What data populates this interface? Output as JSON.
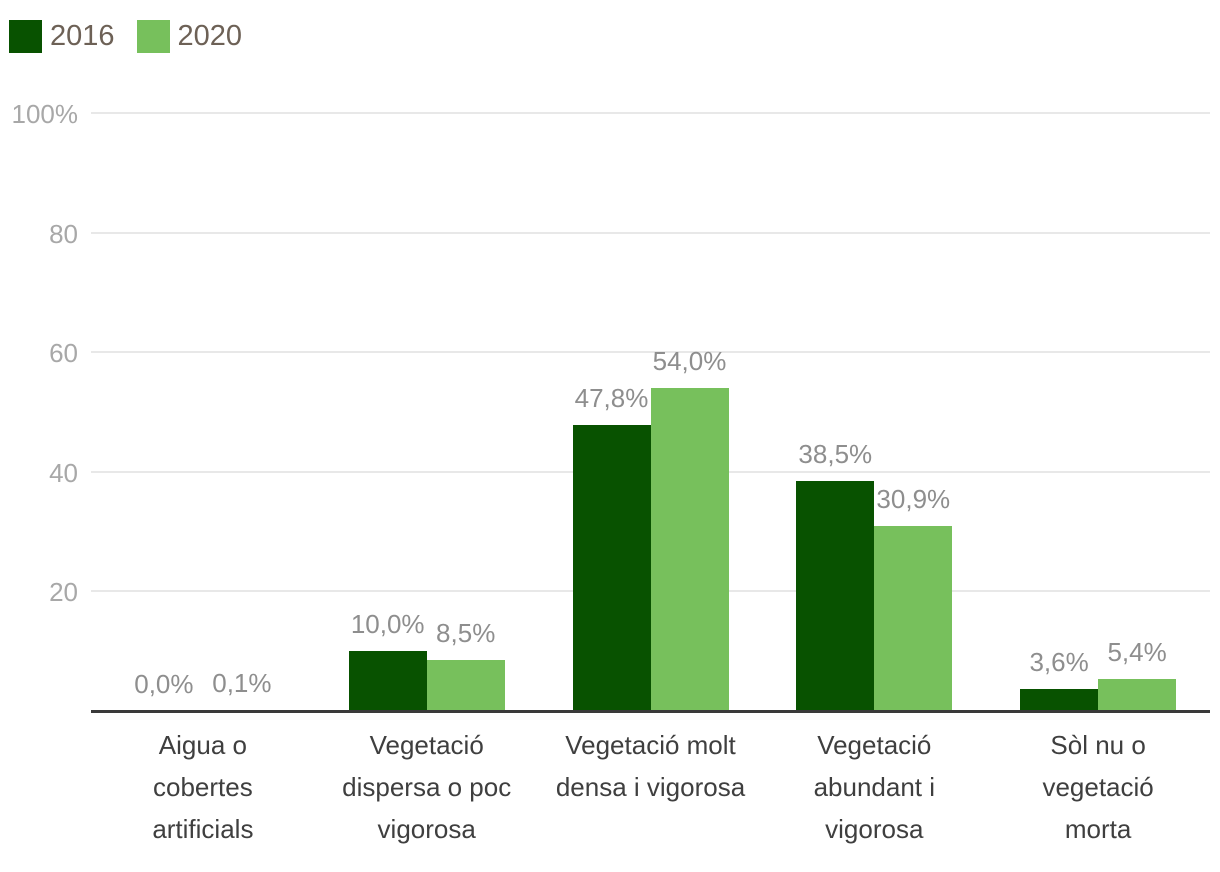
{
  "legend": {
    "series": [
      {
        "label": "2016",
        "color": "#085200"
      },
      {
        "label": "2020",
        "color": "#77c05c"
      }
    ]
  },
  "chart_data": {
    "type": "bar",
    "title": "",
    "xlabel": "",
    "ylabel": "",
    "ylim": [
      0,
      100
    ],
    "grid": true,
    "legend_position": "top-left",
    "y_ticks": [
      "100%",
      "80",
      "60",
      "40",
      "20"
    ],
    "y_tick_values": [
      100,
      80,
      60,
      40,
      20
    ],
    "categories": [
      "Aigua o cobertes artificials",
      "Vegetació dispersa o poc vigorosa",
      "Vegetació molt densa i vigorosa",
      "Vegetació abundant i vigorosa",
      "Sòl nu o vegetació morta"
    ],
    "categories_wrapped": [
      [
        "Aigua o",
        "cobertes",
        "artificials"
      ],
      [
        "Vegetació",
        "dispersa o poc",
        "vigorosa"
      ],
      [
        "Vegetació molt",
        "densa i vigorosa"
      ],
      [
        "Vegetació",
        "abundant i",
        "vigorosa"
      ],
      [
        "Sòl nu o",
        "vegetació",
        "morta"
      ]
    ],
    "series": [
      {
        "name": "2016",
        "color": "#085200",
        "values": [
          0.0,
          10.0,
          47.8,
          38.5,
          3.6
        ],
        "value_labels": [
          "0,0%",
          "10,0%",
          "47,8%",
          "38,5%",
          "3,6%"
        ]
      },
      {
        "name": "2020",
        "color": "#77c05c",
        "values": [
          0.1,
          8.5,
          54.0,
          30.9,
          5.4
        ],
        "value_labels": [
          "0,1%",
          "8,5%",
          "54,0%",
          "30,9%",
          "5,4%"
        ]
      }
    ]
  },
  "colors": {
    "grid": "#e8e8e8",
    "axis_line": "#3a3a3a",
    "y_tick_text": "#a8a8a8",
    "value_label_text": "#8e8e8e",
    "category_text": "#3f3f3f",
    "legend_text": "#6d6156",
    "background": "#ffffff"
  }
}
